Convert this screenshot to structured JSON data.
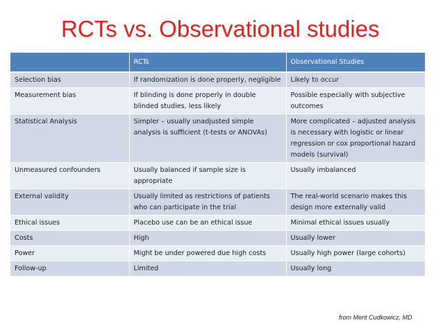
{
  "title": "RCTs vs. Observational studies",
  "table": {
    "headers": [
      "",
      "RCTs",
      "Observational Studies"
    ],
    "rows": [
      [
        "Selection bias",
        "If randomization is done properly, negligible",
        "Likely to occur"
      ],
      [
        "Measurement bias",
        "If blinding is done properly in double blinded studies, less likely",
        "Possible especially with subjective outcomes"
      ],
      [
        "Statistical Analysis",
        "Simpler – usually unadjusted simple analysis is sufficient (t-tests or ANOVAs)",
        "More complicated – adjusted analysis is necessary with logistic or linear regression or cox proportional hazard models (survival)"
      ],
      [
        "Unmeasured confounders",
        "Usually balanced if sample size is appropriate",
        "Usually imbalanced"
      ],
      [
        "External validity",
        "Usually limited as restrictions of patients who can participate in the trial",
        "The real-world scenario makes this design more externally valid"
      ],
      [
        "Ethical issues",
        "Placebo use can be an ethical issue",
        "Minimal ethical issues usually"
      ],
      [
        "Costs",
        "High",
        "Usually lower"
      ],
      [
        "Power",
        "Might be under powered due high costs",
        "Usually high power (large cohorts)"
      ],
      [
        "Follow-up",
        "Limited",
        "Usually long"
      ]
    ]
  },
  "credit": "from Merit Cudkowicz, MD",
  "colors": {
    "title": "#e8201c",
    "header_bg": "#4f81bd",
    "row_dark": "#d0d8e8",
    "row_light": "#e9edf4"
  }
}
